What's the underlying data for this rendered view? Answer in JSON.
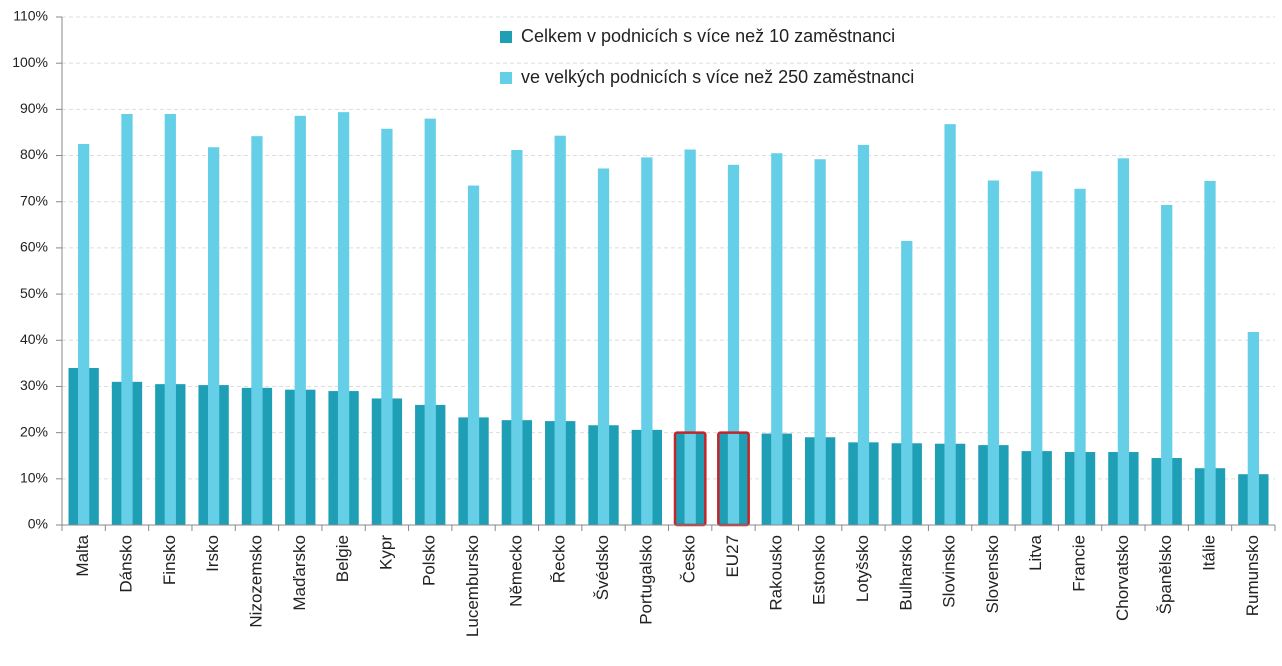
{
  "chart_data": {
    "type": "overlap_bar",
    "categories": [
      "Malta",
      "Dánsko",
      "Finsko",
      "Irsko",
      "Nizozemsko",
      "Maďarsko",
      "Belgie",
      "Kypr",
      "Polsko",
      "Lucembursko",
      "Německo",
      "Řecko",
      "Švédsko",
      "Portugalsko",
      "Česko",
      "EU27",
      "Rakousko",
      "Estonsko",
      "Lotyšsko",
      "Bulharsko",
      "Slovinsko",
      "Slovensko",
      "Litva",
      "Francie",
      "Chorvatsko",
      "Španělsko",
      "Itálie",
      "Rumunsko"
    ],
    "series": [
      {
        "name": "Celkem v podnicích s více než 10 zaměstnanci",
        "color": "#1f9fb5",
        "values": [
          34,
          31,
          30.5,
          30.3,
          29.7,
          29.3,
          29,
          27.4,
          26,
          23.3,
          22.7,
          22.5,
          21.6,
          20.6,
          20,
          20,
          19.8,
          19,
          17.9,
          17.7,
          17.6,
          17.3,
          16,
          15.8,
          15.8,
          14.5,
          12.3,
          11
        ]
      },
      {
        "name": "ve velkých podnicích s více než 250 zaměstnanci",
        "color": "#66cfe8",
        "values": [
          82.5,
          89,
          89,
          81.8,
          84.2,
          88.6,
          89.4,
          85.8,
          88,
          73.5,
          81.2,
          84.3,
          77.2,
          79.6,
          81.3,
          78,
          80.5,
          79.2,
          82.3,
          61.5,
          86.8,
          74.6,
          76.6,
          72.8,
          79.4,
          69.3,
          74.5,
          41.8
        ]
      }
    ],
    "ylim": [
      0,
      110
    ],
    "yticks": [
      {
        "value": 0,
        "label": "0%"
      },
      {
        "value": 10,
        "label": "10%"
      },
      {
        "value": 20,
        "label": "20%"
      },
      {
        "value": 30,
        "label": "30%"
      },
      {
        "value": 40,
        "label": "40%"
      },
      {
        "value": 50,
        "label": "50%"
      },
      {
        "value": 60,
        "label": "60%"
      },
      {
        "value": 70,
        "label": "70%"
      },
      {
        "value": 80,
        "label": "80%"
      },
      {
        "value": 90,
        "label": "90%"
      },
      {
        "value": 100,
        "label": "100%"
      },
      {
        "value": 110,
        "label": "110%"
      }
    ],
    "grid": true,
    "legend": "top",
    "highlight": [
      14,
      15
    ],
    "highlight_color": "#c0262b"
  }
}
